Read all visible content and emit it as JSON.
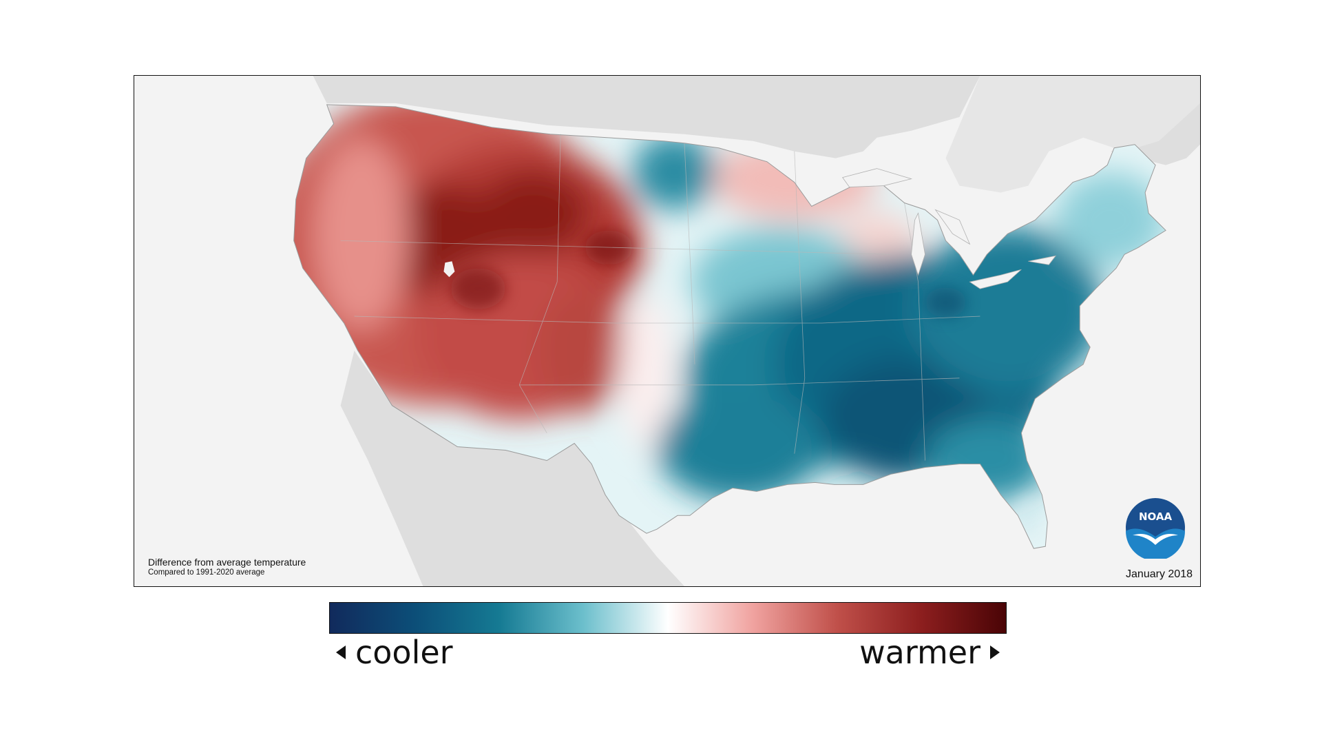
{
  "map": {
    "caption_title": "Difference from average temperature",
    "caption_subtitle": "Compared to 1991-2020 average",
    "date": "January 2018",
    "logo_text": "NOAA"
  },
  "legend": {
    "low_label": "cooler",
    "high_label": "warmer",
    "color_stops": [
      "#112a5c",
      "#0c4e78",
      "#157a93",
      "#6cbfcc",
      "#ffffff",
      "#f0a3a0",
      "#c0504a",
      "#8c1e1e",
      "#4a0406"
    ]
  },
  "colors": {
    "warm_dark": "#7a1212",
    "warm_mid": "#c85650",
    "warm_light": "#f2b4b0",
    "cool_dark": "#0a4a6c",
    "cool_mid": "#1a7e98",
    "cool_light": "#9ed6de",
    "land_outside": "#dcdcdc",
    "water": "#f3f3f3"
  }
}
